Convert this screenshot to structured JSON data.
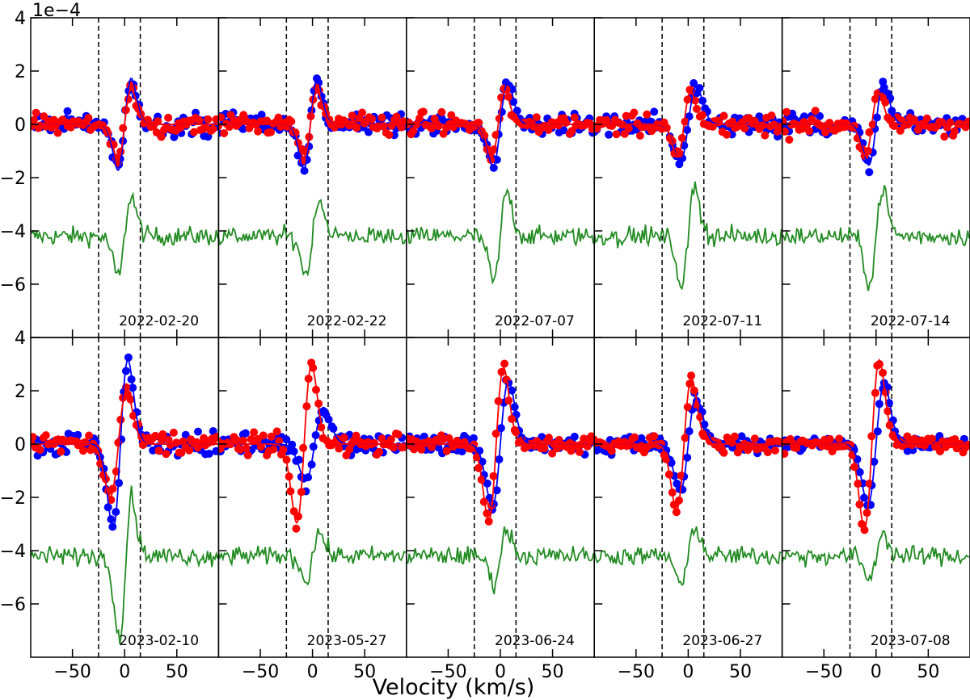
{
  "chart_data": {
    "type": "line",
    "xlabel": "Velocity (km/s)",
    "y_offset_text": "1e−4",
    "xlim": [
      -90,
      90
    ],
    "ylim": [
      -8,
      4
    ],
    "x_ticks": [
      -50,
      0,
      50
    ],
    "x_tick_labels": [
      "−50",
      "0",
      "50"
    ],
    "y_ticks": [
      4,
      2,
      0,
      -2,
      -4,
      -6
    ],
    "y_tick_labels": [
      "4",
      "2",
      "0",
      "−2",
      "−4",
      "−6"
    ],
    "integration_limits": [
      -25,
      15
    ],
    "green_offset": -4.2,
    "colors": {
      "stokes_v_1": "#0000ff",
      "stokes_v_2": "#ff0000",
      "null_profile": "#228b22",
      "frame": "#000000"
    },
    "grid": false,
    "legend": "none",
    "panels": [
      {
        "date": "2022-02-20",
        "blue": {
          "amp": 1.75,
          "shift": 0,
          "width": 9
        },
        "red": {
          "amp": 1.35,
          "shift": 0,
          "width": 9
        },
        "green_amp": 1.7,
        "noise": 0.3
      },
      {
        "date": "2022-02-22",
        "blue": {
          "amp": 1.7,
          "shift": -2,
          "width": 9
        },
        "red": {
          "amp": 1.25,
          "shift": -2,
          "width": 9
        },
        "green_amp": 1.6,
        "noise": 0.3
      },
      {
        "date": "2022-07-07",
        "blue": {
          "amp": 1.6,
          "shift": 0,
          "width": 10
        },
        "red": {
          "amp": 1.25,
          "shift": -2,
          "width": 9
        },
        "green_amp": 1.9,
        "noise": 0.3
      },
      {
        "date": "2022-07-11",
        "blue": {
          "amp": 1.45,
          "shift": 0,
          "width": 11
        },
        "red": {
          "amp": 1.25,
          "shift": -4,
          "width": 9
        },
        "green_amp": 2.1,
        "noise": 0.3
      },
      {
        "date": "2022-07-14",
        "blue": {
          "amp": 1.55,
          "shift": 0,
          "width": 10
        },
        "red": {
          "amp": 1.2,
          "shift": -4,
          "width": 9
        },
        "green_amp": 2.0,
        "noise": 0.3
      },
      {
        "date": "2023-02-10",
        "blue": {
          "amp": 3.2,
          "shift": -4,
          "width": 10
        },
        "red": {
          "amp": 2.0,
          "shift": -6,
          "width": 11
        },
        "green_amp": 2.5,
        "noise": 0.35
      },
      {
        "date": "2023-05-27",
        "blue": {
          "amp": 1.4,
          "shift": 2,
          "width": 12
        },
        "red": {
          "amp": 3.0,
          "shift": -8,
          "width": 10
        },
        "green_amp": 1.0,
        "noise": 0.3
      },
      {
        "date": "2023-06-24",
        "blue": {
          "amp": 2.4,
          "shift": 0,
          "width": 11
        },
        "red": {
          "amp": 2.9,
          "shift": -4,
          "width": 10
        },
        "green_amp": 1.1,
        "noise": 0.25
      },
      {
        "date": "2023-06-27",
        "blue": {
          "amp": 1.8,
          "shift": 0,
          "width": 11
        },
        "red": {
          "amp": 2.5,
          "shift": -4,
          "width": 10
        },
        "green_amp": 1.3,
        "noise": 0.25
      },
      {
        "date": "2023-07-08",
        "blue": {
          "amp": 2.3,
          "shift": 0,
          "width": 11
        },
        "red": {
          "amp": 3.2,
          "shift": -4,
          "width": 10
        },
        "green_amp": 1.0,
        "noise": 0.2
      }
    ]
  }
}
